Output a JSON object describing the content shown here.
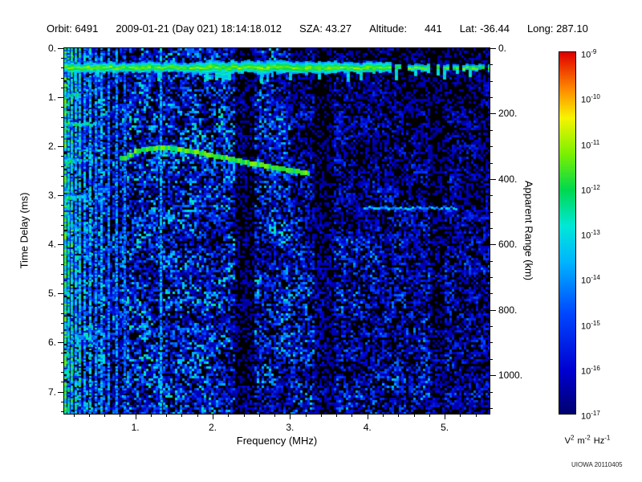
{
  "header": {
    "segments": [
      "Orbit: 6491",
      "2009-01-21 (Day 021) 18:14:18.012",
      "SZA: 43.27",
      "Altitude:",
      "441",
      "Lat: -36.44",
      "Long: 287.10"
    ]
  },
  "watermark": "UIOWA 20110405",
  "chart_data": {
    "type": "heatmap",
    "xlabel": "Frequency (MHz)",
    "ylabel": "Time Delay (ms)",
    "y2label": "Apparent Range (km)",
    "xlim": [
      0.08,
      5.58
    ],
    "ylim": [
      0,
      7.45
    ],
    "x_ticks": [
      1,
      2,
      3,
      4,
      5
    ],
    "x_tick_labels": [
      "1.",
      "2.",
      "3.",
      "4.",
      "5."
    ],
    "y_ticks": [
      0,
      1,
      2,
      3,
      4,
      5,
      6,
      7
    ],
    "y_tick_labels": [
      "0.",
      "1.",
      "2.",
      "3.",
      "4.",
      "5.",
      "6.",
      "7."
    ],
    "y2_ticks": [
      0,
      200,
      400,
      600,
      800,
      1000
    ],
    "y2_tick_labels": [
      "0.",
      "200.",
      "400.",
      "600.",
      "800.",
      "1000."
    ],
    "range_km_per_ms": 150,
    "grid": false,
    "colorbar": {
      "scale": "log",
      "max": "1e-9",
      "min": "1e-17",
      "exponents": [
        "-9",
        "-10",
        "-11",
        "-12",
        "-13",
        "-14",
        "-15",
        "-16",
        "-17"
      ],
      "units_parts": [
        [
          "V",
          "2"
        ],
        [
          "m",
          "-2"
        ],
        [
          "Hz",
          "-1"
        ]
      ]
    },
    "colormap": [
      [
        0.0,
        "#00006e"
      ],
      [
        0.12,
        "#0000d0"
      ],
      [
        0.28,
        "#0048ff"
      ],
      [
        0.42,
        "#00b4ff"
      ],
      [
        0.52,
        "#00e8d8"
      ],
      [
        0.62,
        "#00d850"
      ],
      [
        0.72,
        "#7cf000"
      ],
      [
        0.82,
        "#f8f400"
      ],
      [
        0.9,
        "#ff8800"
      ],
      [
        1.0,
        "#e00000"
      ]
    ],
    "features": {
      "surface_echo": {
        "time_delay_ms": 0.38,
        "freq_range_mhz": [
          0.08,
          5.58
        ]
      },
      "ionosphere_trace": {
        "points_mhz_ms": [
          [
            0.8,
            2.25
          ],
          [
            1.0,
            2.08
          ],
          [
            1.3,
            2.02
          ],
          [
            1.6,
            2.08
          ],
          [
            2.0,
            2.2
          ],
          [
            2.4,
            2.33
          ],
          [
            2.8,
            2.45
          ],
          [
            3.1,
            2.52
          ],
          [
            3.25,
            2.57
          ]
        ]
      },
      "plasma_lines": [
        [
          0.095,
          0.75
        ],
        [
          0.13,
          0.6
        ],
        [
          0.175,
          0.65
        ],
        [
          0.225,
          0.55
        ],
        [
          0.28,
          0.6
        ],
        [
          0.34,
          0.5
        ],
        [
          0.41,
          0.55
        ],
        [
          0.48,
          0.45
        ],
        [
          0.56,
          0.5
        ],
        [
          0.65,
          0.42
        ],
        [
          0.75,
          0.45
        ],
        [
          0.86,
          0.4
        ],
        [
          1.33,
          0.5
        ]
      ],
      "streaks_mhz_ms": [
        [
          0.08,
          0.48,
          1.55
        ],
        [
          0.08,
          0.3,
          2.3
        ],
        [
          0.08,
          0.35,
          3.05
        ],
        [
          0.08,
          0.26,
          0.95
        ]
      ],
      "blobs_mhz_ms": [
        [
          0.12,
          1.5
        ],
        [
          0.14,
          2.3
        ],
        [
          0.12,
          3.05
        ]
      ],
      "noise_smear": {
        "time_delay_ms": 3.25,
        "freq_range_mhz": [
          3.95,
          5.15
        ]
      },
      "dark_bands_mhz": [
        [
          2.28,
          2.52
        ],
        [
          3.3,
          3.55
        ],
        [
          4.82,
          4.98
        ]
      ]
    }
  }
}
